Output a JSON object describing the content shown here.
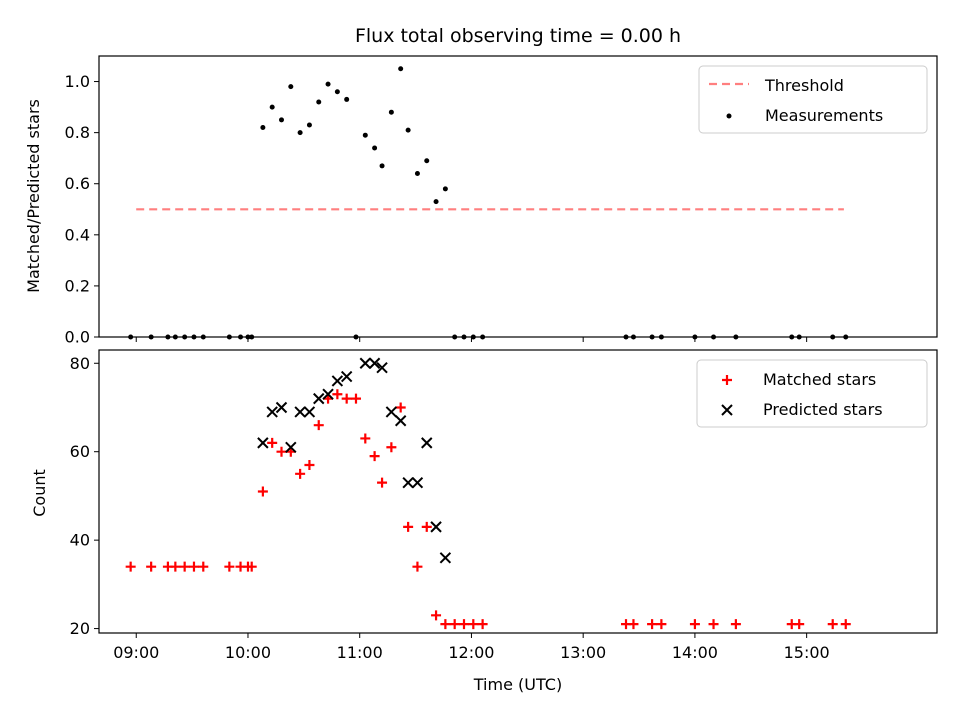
{
  "chart_data": [
    {
      "type": "scatter",
      "title": "Flux total observing time = 0.00 h",
      "xlabel": "",
      "ylabel": "Matched/Predicted stars",
      "xlim": [
        "08:40",
        "16:10"
      ],
      "ylim": [
        0,
        1.1
      ],
      "yticks": [
        "0.0",
        "0.2",
        "0.4",
        "0.6",
        "0.8",
        "1.0"
      ],
      "legend_position": "top-right",
      "series": [
        {
          "name": "Threshold",
          "kind": "dashed-line",
          "color": "#ff7f7f",
          "points": [
            [
              "09:00",
              0.5
            ],
            [
              "15:20",
              0.5
            ]
          ]
        },
        {
          "name": "Measurements",
          "kind": "points",
          "color": "#000000",
          "points": [
            [
              "08:57",
              0.0
            ],
            [
              "09:08",
              0.0
            ],
            [
              "09:17",
              0.0
            ],
            [
              "09:21",
              0.0
            ],
            [
              "09:26",
              0.0
            ],
            [
              "09:31",
              0.0
            ],
            [
              "09:36",
              0.0
            ],
            [
              "09:50",
              0.0
            ],
            [
              "09:56",
              0.0
            ],
            [
              "10:00",
              0.0
            ],
            [
              "10:02",
              0.0
            ],
            [
              "10:08",
              0.82
            ],
            [
              "10:13",
              0.9
            ],
            [
              "10:18",
              0.85
            ],
            [
              "10:23",
              0.98
            ],
            [
              "10:28",
              0.8
            ],
            [
              "10:33",
              0.83
            ],
            [
              "10:38",
              0.92
            ],
            [
              "10:43",
              0.99
            ],
            [
              "10:48",
              0.96
            ],
            [
              "10:53",
              0.93
            ],
            [
              "10:58",
              0.0
            ],
            [
              "11:03",
              0.79
            ],
            [
              "11:08",
              0.74
            ],
            [
              "11:12",
              0.67
            ],
            [
              "11:17",
              0.88
            ],
            [
              "11:22",
              1.05
            ],
            [
              "11:26",
              0.81
            ],
            [
              "11:31",
              0.64
            ],
            [
              "11:36",
              0.69
            ],
            [
              "11:41",
              0.53
            ],
            [
              "11:46",
              0.58
            ],
            [
              "11:51",
              0.0
            ],
            [
              "11:56",
              0.0
            ],
            [
              "12:01",
              0.0
            ],
            [
              "12:06",
              0.0
            ],
            [
              "13:23",
              0.0
            ],
            [
              "13:27",
              0.0
            ],
            [
              "13:37",
              0.0
            ],
            [
              "13:42",
              0.0
            ],
            [
              "14:00",
              0.0
            ],
            [
              "14:10",
              0.0
            ],
            [
              "14:22",
              0.0
            ],
            [
              "14:52",
              0.0
            ],
            [
              "14:56",
              0.0
            ],
            [
              "15:14",
              0.0
            ],
            [
              "15:21",
              0.0
            ]
          ]
        }
      ]
    },
    {
      "type": "scatter",
      "title": "",
      "xlabel": "Time (UTC)",
      "ylabel": "Count",
      "xlim": [
        "08:40",
        "16:10"
      ],
      "ylim": [
        19,
        83
      ],
      "xticks": [
        "09:00",
        "10:00",
        "11:00",
        "12:00",
        "13:00",
        "14:00",
        "15:00"
      ],
      "yticks": [
        "20",
        "40",
        "60",
        "80"
      ],
      "legend_position": "top-right",
      "series": [
        {
          "name": "Matched stars",
          "kind": "plus",
          "color": "#ff0000",
          "points": [
            [
              "08:57",
              34
            ],
            [
              "09:08",
              34
            ],
            [
              "09:17",
              34
            ],
            [
              "09:21",
              34
            ],
            [
              "09:26",
              34
            ],
            [
              "09:31",
              34
            ],
            [
              "09:36",
              34
            ],
            [
              "09:50",
              34
            ],
            [
              "09:56",
              34
            ],
            [
              "10:00",
              34
            ],
            [
              "10:02",
              34
            ],
            [
              "10:08",
              51
            ],
            [
              "10:13",
              62
            ],
            [
              "10:18",
              60
            ],
            [
              "10:23",
              60
            ],
            [
              "10:28",
              55
            ],
            [
              "10:33",
              57
            ],
            [
              "10:38",
              66
            ],
            [
              "10:43",
              72
            ],
            [
              "10:48",
              73
            ],
            [
              "10:53",
              72
            ],
            [
              "10:58",
              72
            ],
            [
              "11:03",
              63
            ],
            [
              "11:08",
              59
            ],
            [
              "11:12",
              53
            ],
            [
              "11:17",
              61
            ],
            [
              "11:22",
              70
            ],
            [
              "11:26",
              43
            ],
            [
              "11:31",
              34
            ],
            [
              "11:36",
              43
            ],
            [
              "11:41",
              23
            ],
            [
              "11:46",
              21
            ],
            [
              "11:51",
              21
            ],
            [
              "11:56",
              21
            ],
            [
              "12:01",
              21
            ],
            [
              "12:06",
              21
            ],
            [
              "13:23",
              21
            ],
            [
              "13:27",
              21
            ],
            [
              "13:37",
              21
            ],
            [
              "13:42",
              21
            ],
            [
              "14:00",
              21
            ],
            [
              "14:10",
              21
            ],
            [
              "14:22",
              21
            ],
            [
              "14:52",
              21
            ],
            [
              "14:56",
              21
            ],
            [
              "15:14",
              21
            ],
            [
              "15:21",
              21
            ]
          ]
        },
        {
          "name": "Predicted stars",
          "kind": "cross",
          "color": "#000000",
          "points": [
            [
              "10:08",
              62
            ],
            [
              "10:13",
              69
            ],
            [
              "10:18",
              70
            ],
            [
              "10:23",
              61
            ],
            [
              "10:28",
              69
            ],
            [
              "10:33",
              69
            ],
            [
              "10:38",
              72
            ],
            [
              "10:43",
              73
            ],
            [
              "10:48",
              76
            ],
            [
              "10:53",
              77
            ],
            [
              "11:03",
              80
            ],
            [
              "11:08",
              80
            ],
            [
              "11:12",
              79
            ],
            [
              "11:17",
              69
            ],
            [
              "11:22",
              67
            ],
            [
              "11:26",
              53
            ],
            [
              "11:31",
              53
            ],
            [
              "11:36",
              62
            ],
            [
              "11:41",
              43
            ],
            [
              "11:46",
              36
            ]
          ]
        }
      ]
    }
  ]
}
